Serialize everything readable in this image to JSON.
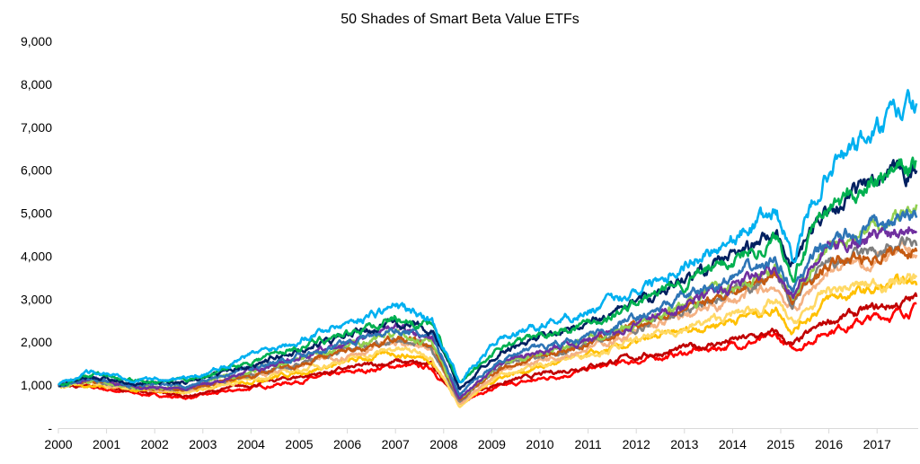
{
  "chart_data": {
    "type": "line",
    "title": "50 Shades of Smart Beta Value ETFs",
    "xlabel": "",
    "ylabel": "",
    "ylim": [
      0,
      9000
    ],
    "xlim": [
      "2000-01",
      "2017-12"
    ],
    "grid": false,
    "legend": "none",
    "y_ticks": [
      0,
      1000,
      2000,
      3000,
      4000,
      5000,
      6000,
      7000,
      8000,
      9000
    ],
    "y_tick_labels": [
      "-",
      "1,000",
      "2,000",
      "3,000",
      "4,000",
      "5,000",
      "6,000",
      "7,000",
      "8,000",
      "9,000"
    ],
    "x_tick_labels": [
      "2000",
      "2001",
      "2002",
      "2003",
      "2004",
      "2005",
      "2006",
      "2007",
      "2008",
      "2009",
      "2010",
      "2011",
      "2012",
      "2013",
      "2014",
      "2015",
      "2016",
      "2017"
    ],
    "x": [
      "2000-01",
      "2000-09",
      "2001-09",
      "2002-09",
      "2005-01",
      "2007-01",
      "2007-10",
      "2008-05",
      "2009-03",
      "2011-06",
      "2014-12",
      "2015-04",
      "2016-01",
      "2017-11"
    ],
    "series": [
      {
        "color": "#ff0000",
        "values": [
          1000,
          950,
          800,
          700,
          1100,
          1450,
          1400,
          650,
          950,
          1450,
          2100,
          1800,
          2300,
          2800
        ]
      },
      {
        "color": "#c00000",
        "values": [
          1000,
          1000,
          850,
          750,
          1200,
          1550,
          1450,
          700,
          1050,
          1550,
          2200,
          1900,
          2500,
          3000
        ]
      },
      {
        "color": "#ffc000",
        "values": [
          1000,
          1000,
          850,
          850,
          1300,
          1750,
          1600,
          550,
          1200,
          1800,
          2800,
          2300,
          3000,
          3400
        ]
      },
      {
        "color": "#ffd966",
        "values": [
          1000,
          1050,
          900,
          850,
          1350,
          1850,
          1700,
          500,
          1250,
          1850,
          2900,
          2400,
          3200,
          3500
        ]
      },
      {
        "color": "#f4b183",
        "values": [
          1000,
          1100,
          900,
          900,
          1450,
          2000,
          1800,
          550,
          1350,
          2000,
          3300,
          2700,
          3700,
          4100
        ]
      },
      {
        "color": "#7f7f7f",
        "values": [
          1000,
          1100,
          950,
          900,
          1500,
          2100,
          1900,
          600,
          1450,
          2100,
          3500,
          2900,
          3800,
          4300
        ]
      },
      {
        "color": "#c55a11",
        "values": [
          1000,
          1100,
          950,
          900,
          1500,
          2100,
          1900,
          650,
          1400,
          2100,
          3600,
          3000,
          3800,
          4200
        ]
      },
      {
        "color": "#92d050",
        "values": [
          1000,
          1100,
          950,
          950,
          1600,
          2200,
          2000,
          700,
          1500,
          2200,
          3700,
          3100,
          4200,
          5200
        ]
      },
      {
        "color": "#7030a0",
        "values": [
          1000,
          1150,
          950,
          900,
          1650,
          2300,
          2050,
          700,
          1500,
          2200,
          3700,
          3200,
          4200,
          4800
        ]
      },
      {
        "color": "#2e75b6",
        "values": [
          1000,
          1150,
          1000,
          1000,
          1700,
          2300,
          2100,
          800,
          1600,
          2300,
          3900,
          3300,
          4300,
          5000
        ]
      },
      {
        "color": "#002060",
        "values": [
          1000,
          1200,
          1050,
          1050,
          1800,
          2500,
          2300,
          900,
          1800,
          2600,
          4500,
          3800,
          5200,
          6000
        ]
      },
      {
        "color": "#00b050",
        "values": [
          1000,
          1250,
          1100,
          1100,
          1900,
          2550,
          2400,
          1000,
          1900,
          2600,
          4400,
          3700,
          5100,
          6200
        ]
      },
      {
        "color": "#00b0f0",
        "values": [
          1000,
          1300,
          1150,
          1150,
          2100,
          2850,
          2500,
          1100,
          2100,
          2900,
          5000,
          4000,
          6100,
          7500
        ]
      }
    ]
  }
}
